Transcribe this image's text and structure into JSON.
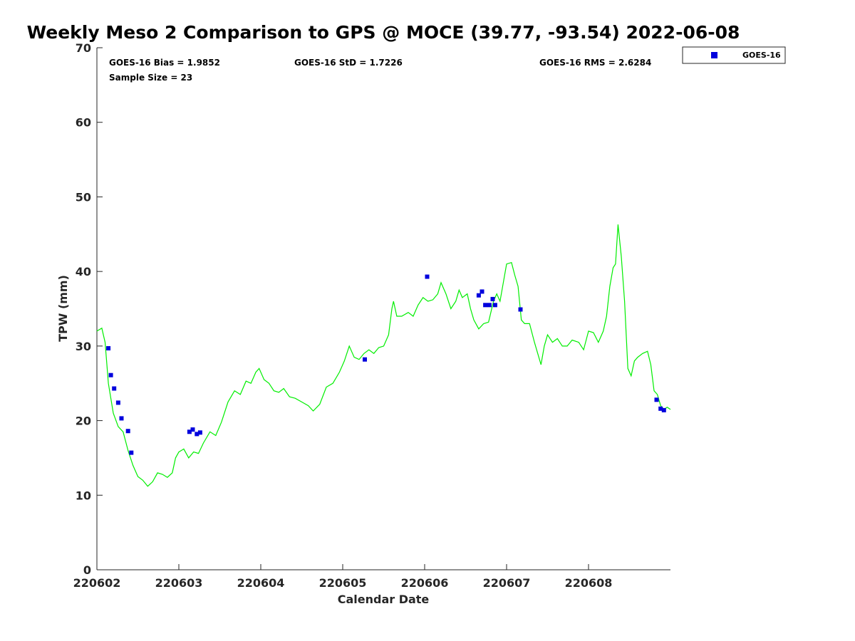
{
  "chart_data": {
    "type": "line",
    "title": "Weekly Meso 2 Comparison to GPS @ MOCE (39.77, -93.54) 2022-06-08",
    "xlabel": "Calendar Date",
    "ylabel": "TPW (mm)",
    "xlim": [
      0,
      7
    ],
    "ylim": [
      0,
      70
    ],
    "yticks": [
      0,
      10,
      20,
      30,
      40,
      50,
      60,
      70
    ],
    "xticks": [
      {
        "value": 0,
        "label": "220602"
      },
      {
        "value": 1,
        "label": "220603"
      },
      {
        "value": 2,
        "label": "220604"
      },
      {
        "value": 3,
        "label": "220605"
      },
      {
        "value": 4,
        "label": "220606"
      },
      {
        "value": 5,
        "label": "220607"
      },
      {
        "value": 6,
        "label": "220608"
      }
    ],
    "grid": false,
    "legend": {
      "placement": "top-right outside",
      "entries": [
        "GOES-16"
      ]
    },
    "stats": {
      "bias": "GOES-16 Bias = 1.9852",
      "std": "GOES-16 StD = 1.7226",
      "rms": "GOES-16 RMS = 2.6284",
      "sample": "Sample Size = 23"
    },
    "gps_series": {
      "color": "#00ee00",
      "points": [
        [
          0.0,
          32.0
        ],
        [
          0.06,
          32.4
        ],
        [
          0.1,
          30.5
        ],
        [
          0.14,
          25.0
        ],
        [
          0.2,
          21.0
        ],
        [
          0.26,
          19.2
        ],
        [
          0.32,
          18.5
        ],
        [
          0.38,
          16.0
        ],
        [
          0.44,
          14.0
        ],
        [
          0.5,
          12.5
        ],
        [
          0.56,
          12.0
        ],
        [
          0.62,
          11.2
        ],
        [
          0.68,
          11.8
        ],
        [
          0.74,
          13.0
        ],
        [
          0.8,
          12.8
        ],
        [
          0.86,
          12.4
        ],
        [
          0.92,
          13.0
        ],
        [
          0.96,
          15.0
        ],
        [
          1.0,
          15.8
        ],
        [
          1.06,
          16.2
        ],
        [
          1.12,
          15.0
        ],
        [
          1.18,
          15.8
        ],
        [
          1.24,
          15.6
        ],
        [
          1.3,
          17.0
        ],
        [
          1.38,
          18.5
        ],
        [
          1.45,
          18.0
        ],
        [
          1.52,
          19.8
        ],
        [
          1.6,
          22.5
        ],
        [
          1.68,
          24.0
        ],
        [
          1.75,
          23.5
        ],
        [
          1.82,
          25.3
        ],
        [
          1.88,
          25.0
        ],
        [
          1.94,
          26.5
        ],
        [
          1.98,
          27.0
        ],
        [
          2.04,
          25.5
        ],
        [
          2.1,
          25.0
        ],
        [
          2.16,
          24.0
        ],
        [
          2.22,
          23.8
        ],
        [
          2.28,
          24.3
        ],
        [
          2.35,
          23.2
        ],
        [
          2.42,
          23.0
        ],
        [
          2.5,
          22.5
        ],
        [
          2.58,
          22.0
        ],
        [
          2.64,
          21.3
        ],
        [
          2.72,
          22.2
        ],
        [
          2.8,
          24.5
        ],
        [
          2.88,
          25.0
        ],
        [
          2.96,
          26.5
        ],
        [
          3.02,
          28.0
        ],
        [
          3.08,
          30.0
        ],
        [
          3.14,
          28.5
        ],
        [
          3.2,
          28.2
        ],
        [
          3.26,
          29.0
        ],
        [
          3.32,
          29.5
        ],
        [
          3.38,
          29.0
        ],
        [
          3.44,
          29.8
        ],
        [
          3.5,
          30.0
        ],
        [
          3.56,
          31.5
        ],
        [
          3.6,
          35.0
        ],
        [
          3.62,
          36.0
        ],
        [
          3.66,
          34.0
        ],
        [
          3.72,
          34.0
        ],
        [
          3.8,
          34.5
        ],
        [
          3.86,
          34.0
        ],
        [
          3.92,
          35.5
        ],
        [
          3.98,
          36.5
        ],
        [
          4.04,
          36.0
        ],
        [
          4.1,
          36.2
        ],
        [
          4.16,
          37.0
        ],
        [
          4.2,
          38.5
        ],
        [
          4.26,
          37.0
        ],
        [
          4.32,
          35.0
        ],
        [
          4.38,
          36.0
        ],
        [
          4.42,
          37.5
        ],
        [
          4.46,
          36.5
        ],
        [
          4.52,
          37.0
        ],
        [
          4.56,
          35.0
        ],
        [
          4.6,
          33.5
        ],
        [
          4.66,
          32.3
        ],
        [
          4.72,
          33.0
        ],
        [
          4.78,
          33.2
        ],
        [
          4.84,
          36.0
        ],
        [
          4.88,
          37.0
        ],
        [
          4.92,
          36.0
        ],
        [
          4.96,
          38.5
        ],
        [
          5.0,
          41.0
        ],
        [
          5.06,
          41.2
        ],
        [
          5.1,
          39.5
        ],
        [
          5.14,
          38.0
        ],
        [
          5.18,
          33.5
        ],
        [
          5.22,
          33.0
        ],
        [
          5.28,
          33.0
        ],
        [
          5.34,
          30.5
        ],
        [
          5.38,
          29.0
        ],
        [
          5.42,
          27.5
        ],
        [
          5.46,
          30.0
        ],
        [
          5.5,
          31.5
        ],
        [
          5.56,
          30.5
        ],
        [
          5.62,
          31.0
        ],
        [
          5.68,
          30.0
        ],
        [
          5.74,
          30.0
        ],
        [
          5.8,
          30.8
        ],
        [
          5.88,
          30.5
        ],
        [
          5.94,
          29.5
        ],
        [
          6.0,
          32.0
        ],
        [
          6.06,
          31.8
        ],
        [
          6.12,
          30.5
        ],
        [
          6.18,
          32.0
        ],
        [
          6.22,
          34.0
        ],
        [
          6.26,
          38.0
        ],
        [
          6.3,
          40.5
        ],
        [
          6.33,
          41.0
        ],
        [
          6.36,
          46.3
        ],
        [
          6.4,
          42.0
        ],
        [
          6.44,
          36.0
        ],
        [
          6.48,
          27.0
        ],
        [
          6.52,
          26.0
        ],
        [
          6.56,
          28.0
        ],
        [
          6.6,
          28.5
        ],
        [
          6.66,
          29.0
        ],
        [
          6.72,
          29.3
        ],
        [
          6.76,
          27.5
        ],
        [
          6.8,
          24.0
        ],
        [
          6.84,
          23.5
        ],
        [
          6.88,
          22.0
        ],
        [
          6.92,
          21.5
        ],
        [
          6.96,
          21.8
        ],
        [
          7.0,
          21.5
        ]
      ]
    },
    "series": [
      {
        "name": "GOES-16",
        "color": "#0000dd",
        "points": [
          [
            0.14,
            29.7
          ],
          [
            0.17,
            26.1
          ],
          [
            0.21,
            24.3
          ],
          [
            0.26,
            22.4
          ],
          [
            0.3,
            20.3
          ],
          [
            0.38,
            18.6
          ],
          [
            0.42,
            15.7
          ],
          [
            1.13,
            18.5
          ],
          [
            1.17,
            18.8
          ],
          [
            1.22,
            18.2
          ],
          [
            1.26,
            18.4
          ],
          [
            3.27,
            28.2
          ],
          [
            4.03,
            39.3
          ],
          [
            4.66,
            36.8
          ],
          [
            4.7,
            37.3
          ],
          [
            4.74,
            35.5
          ],
          [
            4.79,
            35.5
          ],
          [
            4.83,
            36.3
          ],
          [
            4.86,
            35.5
          ],
          [
            5.17,
            34.9
          ],
          [
            6.83,
            22.8
          ],
          [
            6.88,
            21.6
          ],
          [
            6.92,
            21.4
          ]
        ]
      }
    ]
  }
}
